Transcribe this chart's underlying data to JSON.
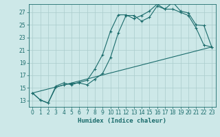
{
  "xlabel": "Humidex (Indice chaleur)",
  "bg_color": "#cde8e8",
  "grid_color": "#aacccc",
  "line_color": "#1a6b6b",
  "xlim": [
    -0.5,
    23.5
  ],
  "ylim": [
    12.0,
    28.3
  ],
  "yticks": [
    13,
    15,
    17,
    19,
    21,
    23,
    25,
    27
  ],
  "xticks": [
    0,
    1,
    2,
    3,
    4,
    5,
    6,
    7,
    8,
    9,
    10,
    11,
    12,
    13,
    14,
    15,
    16,
    17,
    18,
    19,
    20,
    21,
    22,
    23
  ],
  "line1_x": [
    0,
    1,
    2,
    3,
    4,
    5,
    6,
    7,
    8,
    9,
    10,
    11,
    12,
    13,
    14,
    15,
    16,
    17,
    18,
    19,
    20,
    21,
    22,
    23
  ],
  "line1_y": [
    14.2,
    13.1,
    12.6,
    15.1,
    15.5,
    15.7,
    15.8,
    15.5,
    16.4,
    17.3,
    19.8,
    23.7,
    26.5,
    26.5,
    25.6,
    26.2,
    28.0,
    27.5,
    27.5,
    27.0,
    26.5,
    24.5,
    21.8,
    21.5
  ],
  "line2_x": [
    0,
    1,
    2,
    3,
    4,
    5,
    6,
    7,
    8,
    9,
    10,
    11,
    12,
    13,
    14,
    15,
    16,
    17,
    18,
    19,
    20,
    21,
    22,
    23
  ],
  "line2_y": [
    14.2,
    13.1,
    12.6,
    15.3,
    15.8,
    15.5,
    15.9,
    16.2,
    18.0,
    20.3,
    24.0,
    26.6,
    26.6,
    26.0,
    26.5,
    27.2,
    28.3,
    27.5,
    28.6,
    27.2,
    26.9,
    25.0,
    24.9,
    21.5
  ],
  "line3_x": [
    0,
    23
  ],
  "line3_y": [
    14.2,
    21.5
  ],
  "xlabel_fontsize": 6.5,
  "tick_fontsize": 5.5
}
